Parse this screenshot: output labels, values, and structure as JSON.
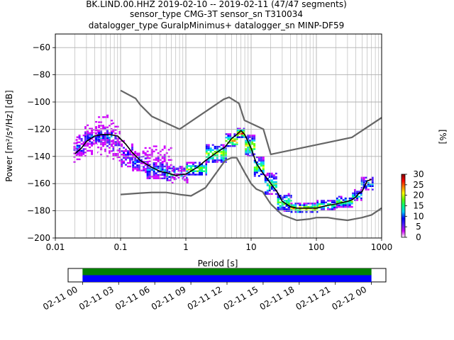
{
  "chart_data": [
    {
      "type": "heatmap",
      "title": [
        "BK.LIND.00.HHZ   2019-02-10 -- 2019-02-11  (47/47 segments)",
        "sensor_type CMG-3T sensor_sn T310034",
        "datalogger_type GuralpMinimus+ datalogger_sn MINP-DF59"
      ],
      "xlabel": "Period [s]",
      "ylabel": "Power [m²/s⁴/Hz] [dB]",
      "xscale": "log",
      "xlim": [
        0.01,
        1000
      ],
      "ylim": [
        -200,
        -50
      ],
      "xticks": [
        0.01,
        0.1,
        1,
        10,
        100,
        1000
      ],
      "xtick_labels": [
        "0.01",
        "0.1",
        "1",
        "10",
        "100",
        "1000"
      ],
      "yticks": [
        -200,
        -180,
        -160,
        -140,
        -120,
        -100,
        -80,
        -60
      ],
      "ytick_labels": [
        "−200",
        "−180",
        "−160",
        "−140",
        "−120",
        "−100",
        "−80",
        "−60"
      ],
      "grid": true,
      "colorbar": {
        "label": "[%]",
        "range": [
          0,
          30
        ],
        "ticks": [
          0,
          5,
          10,
          15,
          20,
          25,
          30
        ],
        "tick_labels": [
          "0",
          "5",
          "10",
          "15",
          "20",
          "25",
          "30"
        ],
        "colormap": [
          "#ffffff",
          "#d000ff",
          "#5020ff",
          "#0000ff",
          "#00c8ff",
          "#00ff80",
          "#60ff00",
          "#ffff00",
          "#ff8000",
          "#ff0000",
          "#800000"
        ]
      },
      "series": [
        {
          "name": "",
          "color": "#000000",
          "x": [
            0.02,
            0.025,
            0.03,
            0.04,
            0.05,
            0.07,
            0.09,
            0.12,
            0.15,
            0.2,
            0.3,
            0.4,
            0.5,
            0.7,
            1,
            1.5,
            2,
            3,
            4,
            5,
            6,
            7,
            8,
            10,
            12,
            15,
            20,
            25,
            30,
            40,
            50,
            70,
            100,
            150,
            200,
            300,
            350,
            400,
            450,
            500,
            600,
            700
          ],
          "y": [
            -138,
            -134,
            -129,
            -125,
            -124,
            -124,
            -125,
            -131,
            -137,
            -143,
            -148,
            -151,
            -152,
            -154,
            -153,
            -148,
            -143,
            -137,
            -133,
            -127,
            -124,
            -121,
            -124,
            -134,
            -145,
            -152,
            -160,
            -166,
            -173,
            -177,
            -178,
            -178,
            -178,
            -176,
            -175,
            -173,
            -172,
            -170,
            -167,
            -166,
            -158,
            -157
          ]
        },
        {
          "name": "",
          "color": "#666666",
          "x": [
            0.1,
            0.17,
            0.2,
            0.3,
            0.8,
            3.8,
            4.6,
            6.5,
            7.9,
            15.4,
            20,
            200,
            350,
            1000
          ],
          "y": [
            -91.5,
            -97.4,
            -102.1,
            -110.5,
            -120,
            -98,
            -96.5,
            -101,
            -113.5,
            -120,
            -138.5,
            -128.5,
            -126,
            -111.5
          ]
        },
        {
          "name": "",
          "color": "#666666",
          "x": [
            0.1,
            0.2,
            0.3,
            0.5,
            0.8,
            1.2,
            2,
            4,
            5,
            6,
            8,
            10,
            12,
            15,
            20,
            30,
            50,
            80,
            100,
            150,
            200,
            300,
            500,
            700,
            1000
          ],
          "y": [
            -168,
            -167,
            -166.5,
            -166.5,
            -168,
            -169,
            -163,
            -143,
            -141,
            -141,
            -152,
            -160,
            -164,
            -166,
            -175,
            -183,
            -187,
            -186,
            -185,
            -185,
            -186,
            -187,
            -185,
            -183,
            -178
          ]
        }
      ],
      "histogram": {
        "bands": [
          {
            "x_range": [
              0.019,
              0.021
            ],
            "y_range": [
              -144,
              -126
            ],
            "level": 4
          },
          {
            "x_range": [
              0.021,
              0.028
            ],
            "y_range": [
              -142,
              -124
            ],
            "level": 8
          },
          {
            "x_range": [
              0.028,
              0.045
            ],
            "y_range": [
              -140,
              -114
            ],
            "level": 3
          },
          {
            "x_range": [
              0.028,
              0.045
            ],
            "y_range": [
              -130,
              -121
            ],
            "level": 10
          },
          {
            "x_range": [
              0.045,
              0.075
            ],
            "y_range": [
              -140,
              -108
            ],
            "level": 3
          },
          {
            "x_range": [
              0.045,
              0.075
            ],
            "y_range": [
              -129,
              -121
            ],
            "level": 12
          },
          {
            "x_range": [
              0.075,
              0.1
            ],
            "y_range": [
              -143,
              -115
            ],
            "level": 4
          },
          {
            "x_range": [
              0.1,
              0.15
            ],
            "y_range": [
              -148,
              -128
            ],
            "level": 6
          },
          {
            "x_range": [
              0.15,
              0.25
            ],
            "y_range": [
              -152,
              -136
            ],
            "level": 9
          },
          {
            "x_range": [
              0.2,
              0.6
            ],
            "y_range": [
              -147,
              -132
            ],
            "level": 2
          },
          {
            "x_range": [
              0.25,
              0.5
            ],
            "y_range": [
              -156,
              -143
            ],
            "level": 11
          },
          {
            "x_range": [
              0.5,
              1
            ],
            "y_range": [
              -158,
              -147
            ],
            "level": 14
          },
          {
            "x_range": [
              0.6,
              1.1
            ],
            "y_range": [
              -160,
              -150
            ],
            "level": 2
          },
          {
            "x_range": [
              1,
              2
            ],
            "y_range": [
              -154,
              -144
            ],
            "level": 18
          },
          {
            "x_range": [
              2,
              4
            ],
            "y_range": [
              -144,
              -131
            ],
            "level": 20
          },
          {
            "x_range": [
              4,
              6
            ],
            "y_range": [
              -133,
              -123
            ],
            "level": 22
          },
          {
            "x_range": [
              6,
              8
            ],
            "y_range": [
              -126,
              -119
            ],
            "level": 25
          },
          {
            "x_range": [
              8,
              11
            ],
            "y_range": [
              -140,
              -124
            ],
            "level": 20
          },
          {
            "x_range": [
              11,
              16
            ],
            "y_range": [
              -155,
              -140
            ],
            "level": 18
          },
          {
            "x_range": [
              16,
              25
            ],
            "y_range": [
              -168,
              -152
            ],
            "level": 16
          },
          {
            "x_range": [
              25,
              40
            ],
            "y_range": [
              -180,
              -167
            ],
            "level": 18
          },
          {
            "x_range": [
              40,
              100
            ],
            "y_range": [
              -181,
              -174
            ],
            "level": 22
          },
          {
            "x_range": [
              100,
              200
            ],
            "y_range": [
              -179,
              -172
            ],
            "level": 18
          },
          {
            "x_range": [
              200,
              350
            ],
            "y_range": [
              -177,
              -169
            ],
            "level": 16
          },
          {
            "x_range": [
              350,
              480
            ],
            "y_range": [
              -172,
              -164
            ],
            "level": 14
          },
          {
            "x_range": [
              480,
              700
            ],
            "y_range": [
              -164,
              -155
            ],
            "level": 12
          }
        ]
      }
    },
    {
      "type": "bar",
      "xlabel": "",
      "ylabel": "",
      "xlim": [
        "02-11 00",
        "02-12 00"
      ],
      "xtick_labels": [
        "02-11 00",
        "02-11 03",
        "02-11 06",
        "02-11 09",
        "02-11 12",
        "02-11 15",
        "02-11 18",
        "02-11 21",
        "02-12 00"
      ],
      "xtick_hours": [
        0,
        3,
        6,
        9,
        12,
        15,
        18,
        21,
        24
      ],
      "view_hours": [
        -1.2,
        25.2
      ],
      "bands": [
        {
          "name": "",
          "color": "#008000",
          "start_hours": 0,
          "end_hours": 24
        },
        {
          "name": "",
          "color": "#0000ff",
          "start_hours": 0,
          "end_hours": 24
        }
      ]
    }
  ]
}
